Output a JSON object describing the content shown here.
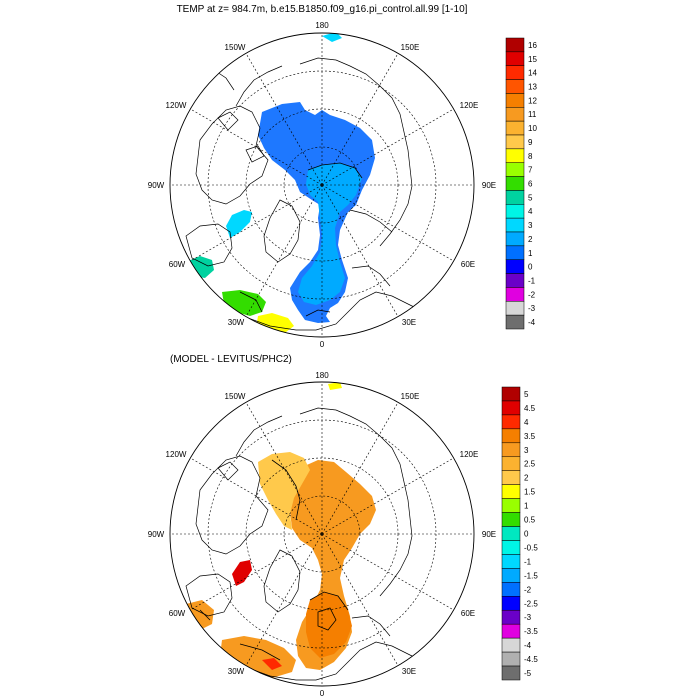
{
  "panels": [
    {
      "title": "TEMP at z= 984.7m, b.e15.B1850.f09_g16.pi_control.all.99 [1-10]",
      "lon_labels": [
        "180",
        "150E",
        "120E",
        "90E",
        "60E",
        "30E",
        "0",
        "30W",
        "60W",
        "90W",
        "120W",
        "150W"
      ],
      "colorbar": {
        "labels": [
          "16",
          "15",
          "14",
          "13",
          "12",
          "11",
          "10",
          "9",
          "8",
          "7",
          "6",
          "5",
          "4",
          "3",
          "2",
          "1",
          "0",
          "-1",
          "-2",
          "-3",
          "-4"
        ],
        "colors": [
          "#b00000",
          "#e00000",
          "#ff2a00",
          "#ff5500",
          "#f57f00",
          "#f79a20",
          "#fbb230",
          "#ffc94b",
          "#ffff00",
          "#99ff00",
          "#33dd00",
          "#00d2a0",
          "#00f5e6",
          "#00d8ff",
          "#00aaff",
          "#0070ff",
          "#0000ff",
          "#6a00c8",
          "#e000e0",
          "#d7d7d7",
          "#6e6e6e"
        ]
      }
    },
    {
      "title": "(MODEL - LEVITUS/PHC2)",
      "lon_labels": [
        "180",
        "150E",
        "120E",
        "90E",
        "60E",
        "30E",
        "0",
        "30W",
        "60W",
        "90W",
        "120W",
        "150W"
      ],
      "colorbar": {
        "labels": [
          "5",
          "4.5",
          "4",
          "3.5",
          "3",
          "2.5",
          "2",
          "1.5",
          "1",
          "0.5",
          "0",
          "-0.5",
          "-1",
          "-1.5",
          "-2",
          "-2.5",
          "-3",
          "-3.5",
          "-4",
          "-4.5",
          "-5"
        ],
        "colors": [
          "#b00000",
          "#e00000",
          "#ff2a00",
          "#f57f00",
          "#f79a20",
          "#fbb230",
          "#ffc94b",
          "#ffff00",
          "#99ff00",
          "#33dd00",
          "#00e8c0",
          "#00f5e6",
          "#00d8ff",
          "#00aaff",
          "#0070ff",
          "#0000ff",
          "#6a00c8",
          "#e000e0",
          "#d7d7d7",
          "#b0b0b0",
          "#6e6e6e"
        ]
      }
    }
  ]
}
